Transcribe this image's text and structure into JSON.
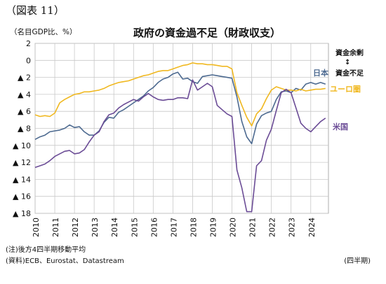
{
  "figure_label": "（図表 11）",
  "unit_label": "（名目GDP比、%）",
  "footnote": "(注)後方4四半期移動平均",
  "source": "(資料)ECB、Eurostat、Datastream",
  "frequency_label": "(四半期)",
  "annotations": {
    "surplus": "資金余剰",
    "arrow": "↕",
    "deficit": "資金不足"
  },
  "colors": {
    "japan": "#4d6a90",
    "euro": "#f0b820",
    "us": "#6b4c96",
    "grid": "#c8c8c8"
  },
  "chart_data": {
    "type": "line",
    "title": "政府の資金過不足（財政収支）",
    "xlabel": "",
    "ylabel": "",
    "x_start": 2010.0,
    "x_step": 0.25,
    "xlim": [
      2010.0,
      2024.9
    ],
    "ylim": [
      -18,
      2
    ],
    "y_ticks": [
      2,
      0,
      -2,
      -4,
      -6,
      -8,
      -10,
      -12,
      -14,
      -16,
      -18
    ],
    "y_tick_labels": [
      "2",
      "0",
      "▲ 2",
      "▲ 4",
      "▲ 6",
      "▲ 8",
      "▲ 10",
      "▲ 12",
      "▲ 14",
      "▲ 16",
      "▲ 18"
    ],
    "x_ticks": [
      2010,
      2011,
      2012,
      2013,
      2014,
      2015,
      2016,
      2017,
      2018,
      2019,
      2020,
      2021,
      2022,
      2023,
      2024
    ],
    "x_tick_labels": [
      "2010",
      "2011",
      "2012",
      "2013",
      "2014",
      "2015",
      "2016",
      "2017",
      "2018",
      "2019",
      "2020",
      "2021",
      "2022",
      "2023",
      "2024"
    ],
    "grid": true,
    "series": [
      {
        "name": "日本",
        "color": "#4d6a90",
        "values": [
          -9.3,
          -9.0,
          -8.8,
          -8.4,
          -8.3,
          -8.2,
          -8.0,
          -7.6,
          -7.9,
          -7.8,
          -8.4,
          -8.8,
          -8.8,
          -8.3,
          -7.3,
          -6.7,
          -6.8,
          -6.1,
          -5.8,
          -5.4,
          -5.0,
          -4.6,
          -4.2,
          -3.6,
          -3.2,
          -2.6,
          -2.2,
          -2.0,
          -1.6,
          -1.4,
          -2.2,
          -2.1,
          -2.5,
          -2.7,
          -1.9,
          -1.8,
          -1.7,
          -1.8,
          -1.9,
          -2.0,
          -2.1,
          -4.3,
          -7.2,
          -9.0,
          -9.8,
          -7.5,
          -6.5,
          -6.2,
          -6.0,
          -4.6,
          -3.7,
          -3.6,
          -3.8,
          -3.3,
          -3.5,
          -2.8,
          -2.6,
          -2.8,
          -2.6,
          -2.8
        ]
      },
      {
        "name": "ユーロ圏",
        "color": "#f0b820",
        "values": [
          -6.4,
          -6.6,
          -6.5,
          -6.6,
          -6.2,
          -5.0,
          -4.6,
          -4.3,
          -4.0,
          -3.9,
          -3.7,
          -3.7,
          -3.6,
          -3.5,
          -3.3,
          -3.0,
          -2.8,
          -2.6,
          -2.5,
          -2.4,
          -2.2,
          -2.0,
          -1.8,
          -1.7,
          -1.5,
          -1.3,
          -1.2,
          -1.2,
          -1.0,
          -0.8,
          -0.6,
          -0.5,
          -0.3,
          -0.4,
          -0.4,
          -0.5,
          -0.5,
          -0.6,
          -0.7,
          -0.7,
          -1.0,
          -3.8,
          -5.3,
          -6.7,
          -7.7,
          -6.3,
          -5.7,
          -4.5,
          -3.5,
          -3.1,
          -3.3,
          -3.5,
          -3.5,
          -3.6,
          -3.4,
          -3.6,
          -3.5,
          -3.4,
          -3.4,
          -3.3
        ]
      },
      {
        "name": "米国",
        "color": "#6b4c96",
        "values": [
          -12.6,
          -12.4,
          -12.2,
          -11.8,
          -11.3,
          -11.0,
          -10.7,
          -10.6,
          -11.0,
          -10.9,
          -10.5,
          -9.6,
          -8.8,
          -8.4,
          -7.2,
          -6.4,
          -6.2,
          -5.6,
          -5.2,
          -4.9,
          -4.6,
          -4.8,
          -4.3,
          -3.9,
          -4.3,
          -4.6,
          -4.7,
          -4.6,
          -4.6,
          -4.4,
          -4.4,
          -4.5,
          -2.3,
          -3.5,
          -3.1,
          -2.7,
          -3.1,
          -5.3,
          -5.8,
          -6.3,
          -6.6,
          -12.9,
          -15.0,
          -17.8,
          -17.8,
          -12.4,
          -11.8,
          -9.4,
          -8.1,
          -5.9,
          -3.8,
          -3.4,
          -3.8,
          -5.6,
          -7.4,
          -8.0,
          -8.4,
          -7.8,
          -7.2,
          -6.8
        ]
      }
    ]
  }
}
